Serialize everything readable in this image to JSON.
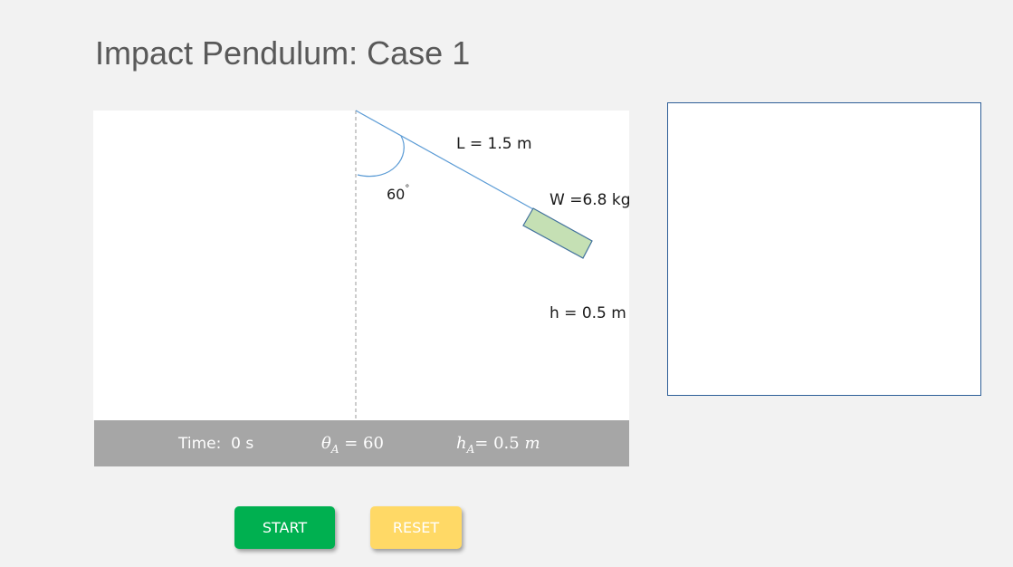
{
  "title": "Impact Pendulum: Case 1",
  "simulation": {
    "length_label": "L = 1.5 m",
    "weight_label": "W =6.8 kg",
    "height_label": "h = 0.5 m",
    "angle_value": "60",
    "angle_unit": "°"
  },
  "status": {
    "time_label": "Time:",
    "time_value": "0 s",
    "theta_symbol": "θ",
    "theta_sub": "A",
    "theta_value": " = 60",
    "h_symbol": "h",
    "h_sub": "A",
    "h_equals": "= 0.5",
    "h_unit": "m"
  },
  "buttons": {
    "start": "START",
    "reset": "RESET"
  },
  "colors": {
    "background": "#f2f2f2",
    "status_bar": "#a6a6a6",
    "start_button": "#00b050",
    "reset_button": "#ffd966",
    "pendulum_mass": "#c5e0b4",
    "pendulum_string": "#5b9bd5",
    "graph_border": "#2e5f98"
  }
}
